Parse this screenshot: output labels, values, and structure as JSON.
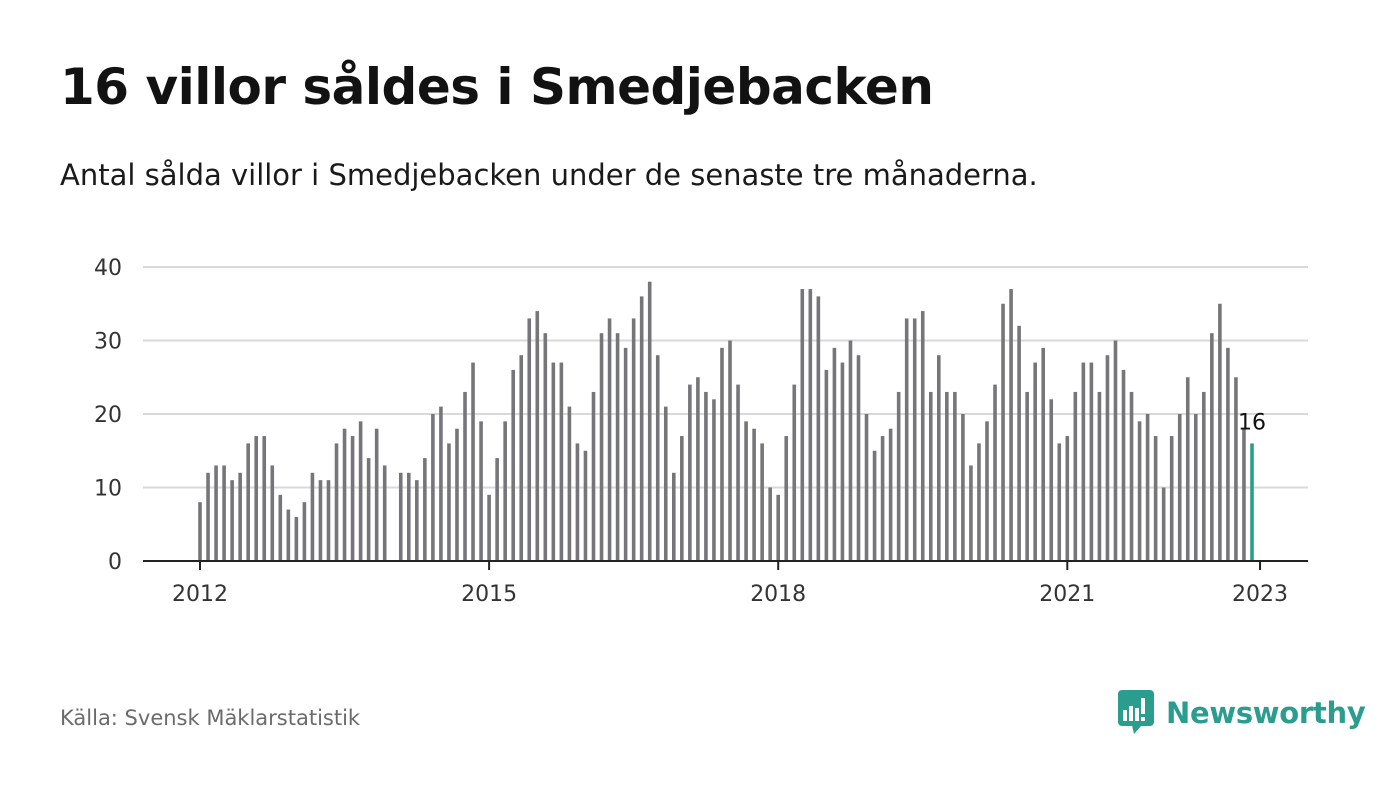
{
  "header": {
    "title": "16 villor såldes i Smedjebacken",
    "subtitle": "Antal sålda villor i Smedjebacken under de senaste tre månaderna."
  },
  "footer": {
    "source": "Källa: Svensk Mäklarstatistik",
    "brand": "Newsworthy"
  },
  "colors": {
    "bar": "#76767a",
    "highlight": "#2a9d8f",
    "grid": "#d9d9d9",
    "axis": "#222222",
    "brand": "#2a9d8f"
  },
  "icons": {
    "logo": "newsworthy-logo-icon"
  },
  "chart_data": {
    "type": "bar",
    "x_start": "2012-01",
    "x_end": "2023-01",
    "x_ticks": [
      "2012",
      "2015",
      "2018",
      "2021",
      "2023"
    ],
    "y_ticks": [
      0,
      10,
      20,
      30,
      40
    ],
    "ylim": [
      0,
      40
    ],
    "grid": true,
    "highlight_label": "16",
    "values": [
      8,
      12,
      13,
      13,
      11,
      12,
      16,
      17,
      17,
      13,
      9,
      7,
      6,
      8,
      12,
      11,
      11,
      16,
      18,
      17,
      19,
      14,
      18,
      13,
      null,
      12,
      12,
      11,
      14,
      20,
      21,
      16,
      18,
      23,
      27,
      19,
      9,
      14,
      19,
      26,
      28,
      33,
      34,
      31,
      27,
      27,
      21,
      16,
      15,
      23,
      31,
      33,
      31,
      29,
      33,
      36,
      38,
      28,
      21,
      12,
      17,
      24,
      25,
      23,
      22,
      29,
      30,
      24,
      19,
      18,
      16,
      10,
      9,
      17,
      24,
      37,
      37,
      36,
      26,
      29,
      27,
      30,
      28,
      20,
      15,
      17,
      18,
      23,
      33,
      33,
      34,
      23,
      28,
      23,
      23,
      20,
      13,
      16,
      19,
      24,
      35,
      37,
      32,
      23,
      27,
      29,
      22,
      16,
      17,
      23,
      27,
      27,
      23,
      28,
      30,
      26,
      23,
      19,
      20,
      17,
      10,
      17,
      20,
      25,
      20,
      23,
      31,
      35,
      29,
      25,
      18,
      16
    ]
  }
}
